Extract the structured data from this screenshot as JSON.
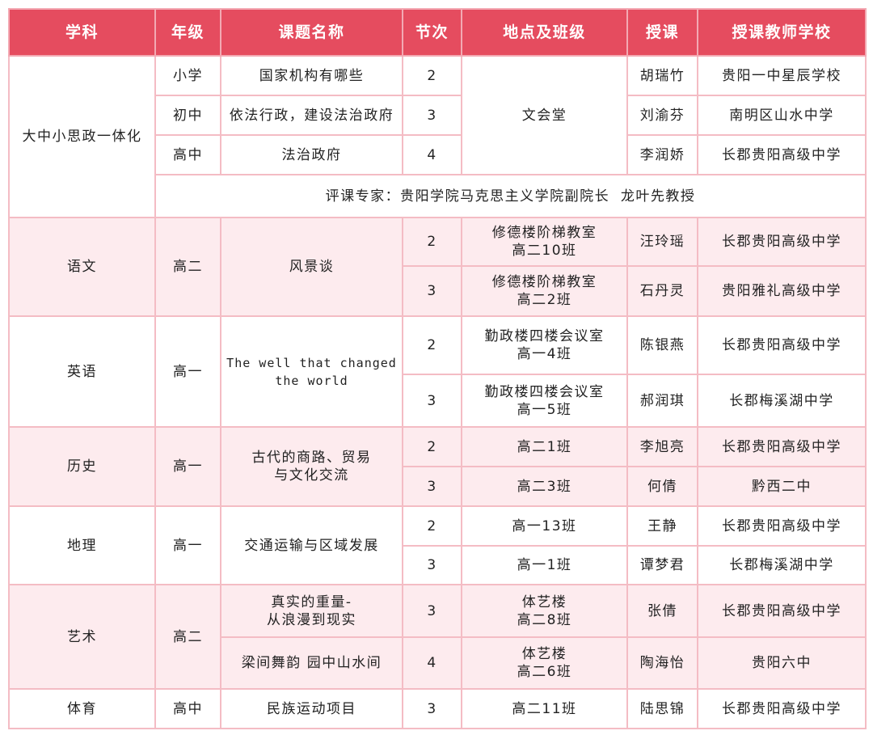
{
  "header": [
    "学科",
    "年级",
    "课题名称",
    "节次",
    "地点及班级",
    "授课",
    "授课教师学校"
  ],
  "colors": {
    "header_bg": "#e54c5f",
    "alt_row_bg": "#fdebee",
    "border": "#f4bcc4"
  },
  "g1": {
    "subject": "大中小思政一体化",
    "place": "文会堂",
    "rows": [
      {
        "grade": "小学",
        "topic": "国家机构有哪些",
        "period": "2",
        "teacher": "胡瑞竹",
        "school": "贵阳一中星辰学校"
      },
      {
        "grade": "初中",
        "topic": "依法行政，建设法治政府",
        "period": "3",
        "teacher": "刘渝芬",
        "school": "南明区山水中学"
      },
      {
        "grade": "高中",
        "topic": "法治政府",
        "period": "4",
        "teacher": "李润娇",
        "school": "长郡贵阳高级中学"
      }
    ],
    "expert": "评课专家：贵阳学院马克思主义学院副院长  龙叶先教授"
  },
  "g2": {
    "subject": "语文",
    "grade": "高二",
    "topic": "风景谈",
    "rows": [
      {
        "period": "2",
        "place": "修德楼阶梯教室\n高二10班",
        "teacher": "汪玲瑶",
        "school": "长郡贵阳高级中学"
      },
      {
        "period": "3",
        "place": "修德楼阶梯教室\n高二2班",
        "teacher": "石丹灵",
        "school": "贵阳雅礼高级中学"
      }
    ]
  },
  "g3": {
    "subject": "英语",
    "grade": "高一",
    "topic": "The well that changed\nthe world",
    "rows": [
      {
        "period": "2",
        "place": "勤政楼四楼会议室\n高一4班",
        "teacher": "陈银燕",
        "school": "长郡贵阳高级中学"
      },
      {
        "period": "3",
        "place": "勤政楼四楼会议室\n高一5班",
        "teacher": "郝润琪",
        "school": "长郡梅溪湖中学"
      }
    ]
  },
  "g4": {
    "subject": "历史",
    "grade": "高一",
    "topic": "古代的商路、贸易\n与文化交流",
    "rows": [
      {
        "period": "2",
        "place": "高二1班",
        "teacher": "李旭亮",
        "school": "长郡贵阳高级中学"
      },
      {
        "period": "3",
        "place": "高二3班",
        "teacher": "何倩",
        "school": "黔西二中"
      }
    ]
  },
  "g5": {
    "subject": "地理",
    "grade": "高一",
    "topic": "交通运输与区域发展",
    "rows": [
      {
        "period": "2",
        "place": "高一13班",
        "teacher": "王静",
        "school": "长郡贵阳高级中学"
      },
      {
        "period": "3",
        "place": "高一1班",
        "teacher": "谭梦君",
        "school": "长郡梅溪湖中学"
      }
    ]
  },
  "g6": {
    "subject": "艺术",
    "grade": "高二",
    "rows": [
      {
        "topic": "真实的重量-\n从浪漫到现实",
        "period": "3",
        "place": "体艺楼\n高二8班",
        "teacher": "张倩",
        "school": "长郡贵阳高级中学"
      },
      {
        "topic": "梁间舞韵 园中山水间",
        "period": "4",
        "place": "体艺楼\n高二6班",
        "teacher": "陶海怡",
        "school": "贵阳六中"
      }
    ]
  },
  "g7": {
    "subject": "体育",
    "grade": "高中",
    "topic": "民族运动项目",
    "period": "3",
    "place": "高二11班",
    "teacher": "陆思锦",
    "school": "长郡贵阳高级中学"
  }
}
